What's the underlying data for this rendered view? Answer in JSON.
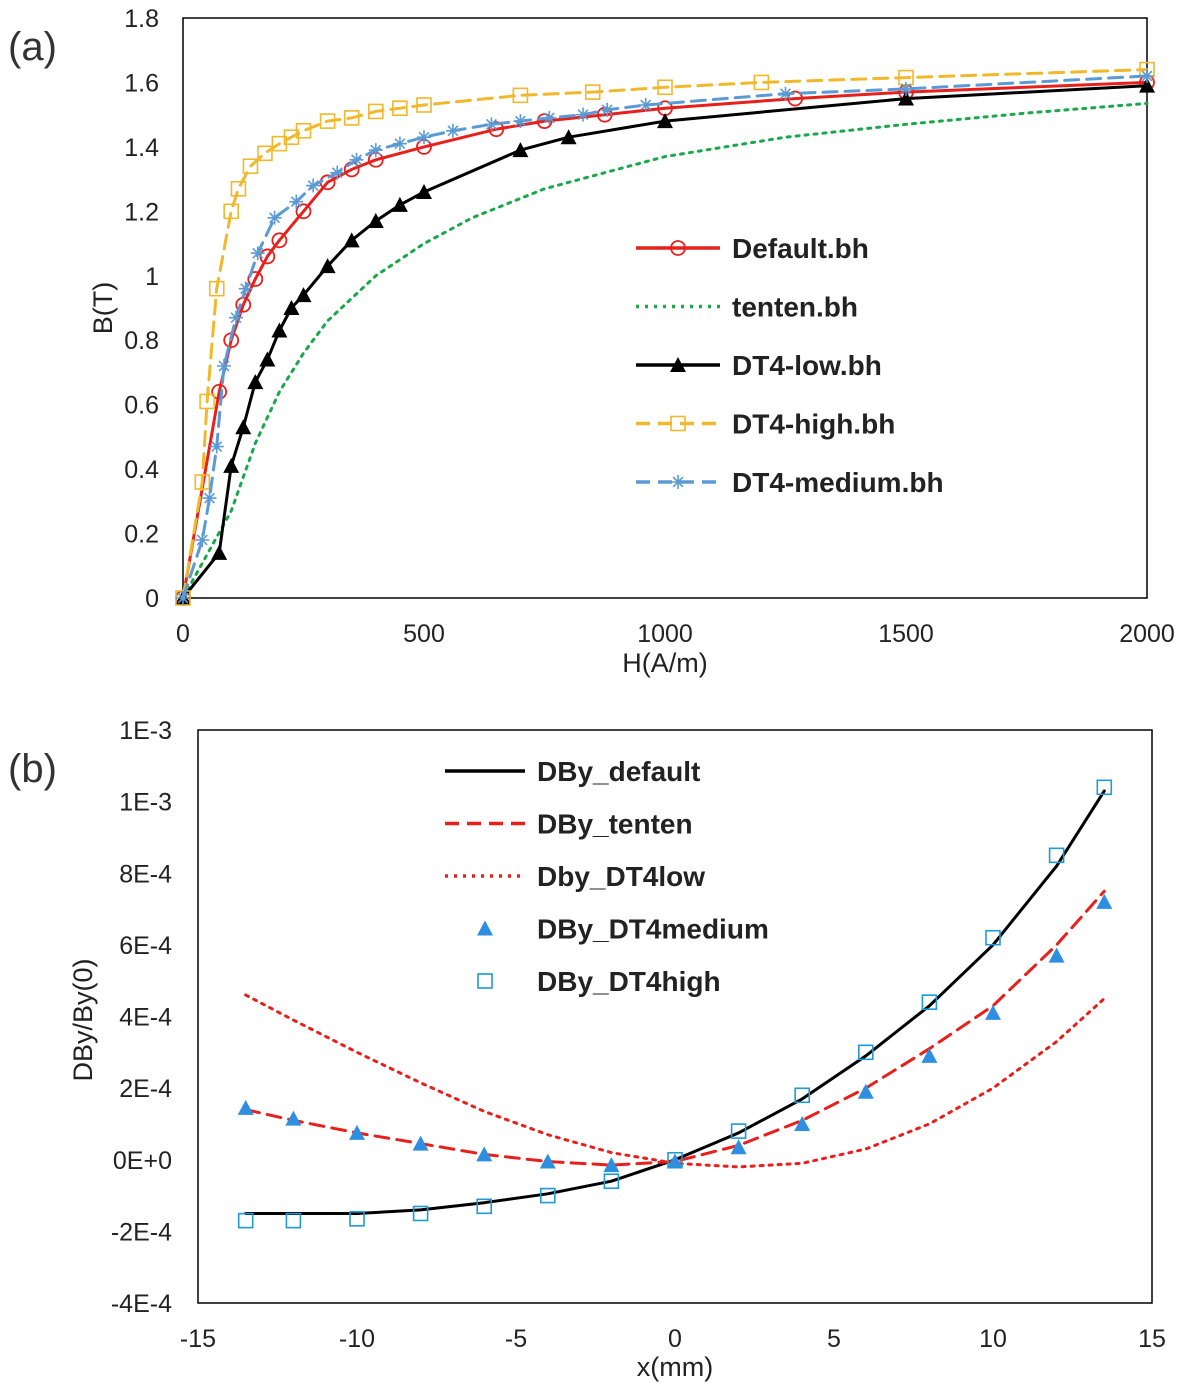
{
  "chart_data": [
    {
      "panel": "(a)",
      "type": "line",
      "xlabel": "H(A/m)",
      "ylabel": "B(T)",
      "xlim": [
        0,
        2000
      ],
      "ylim": [
        0,
        1.8
      ],
      "xticks": [
        "0",
        "500",
        "1000",
        "1500",
        "2000"
      ],
      "yticks": [
        "0",
        "0.2",
        "0.4",
        "0.6",
        "0.8",
        "1",
        "1.2",
        "1.4",
        "1.6",
        "1.8"
      ],
      "legend_position": "center-right",
      "series": [
        {
          "name": "Default.bh",
          "color": "#e8201c",
          "style": "solid",
          "marker": "circle-open",
          "x": [
            0,
            75,
            100,
            125,
            150,
            175,
            200,
            250,
            300,
            350,
            400,
            500,
            650,
            750,
            875,
            1000,
            1270,
            1500,
            2000
          ],
          "y": [
            0,
            0.64,
            0.8,
            0.91,
            0.99,
            1.06,
            1.11,
            1.2,
            1.29,
            1.33,
            1.36,
            1.4,
            1.455,
            1.48,
            1.5,
            1.52,
            1.55,
            1.57,
            1.6
          ]
        },
        {
          "name": "tenten.bh",
          "color": "#1aa84a",
          "style": "dotted",
          "marker": "none",
          "x": [
            0,
            100,
            150,
            200,
            250,
            300,
            400,
            500,
            600,
            750,
            1000,
            1250,
            1500,
            1750,
            2000
          ],
          "y": [
            0,
            0.27,
            0.48,
            0.64,
            0.76,
            0.86,
            1.0,
            1.1,
            1.18,
            1.27,
            1.37,
            1.43,
            1.47,
            1.505,
            1.535
          ]
        },
        {
          "name": "DT4-low.bh",
          "color": "#000000",
          "style": "solid",
          "marker": "triangle-filled",
          "x": [
            0,
            75,
            100,
            125,
            150,
            175,
            200,
            225,
            250,
            300,
            350,
            400,
            450,
            500,
            700,
            800,
            1000,
            1500,
            2000
          ],
          "y": [
            0,
            0.14,
            0.41,
            0.53,
            0.67,
            0.74,
            0.83,
            0.9,
            0.94,
            1.03,
            1.11,
            1.17,
            1.22,
            1.26,
            1.39,
            1.43,
            1.48,
            1.55,
            1.59
          ]
        },
        {
          "name": "DT4-high.bh",
          "color": "#f0b82a",
          "style": "dashed",
          "marker": "square-open",
          "x": [
            0,
            40,
            50,
            70,
            100,
            115,
            140,
            170,
            200,
            225,
            250,
            300,
            350,
            400,
            450,
            500,
            700,
            850,
            1000,
            1200,
            1500,
            2000
          ],
          "y": [
            0,
            0.36,
            0.61,
            0.96,
            1.2,
            1.27,
            1.34,
            1.38,
            1.41,
            1.43,
            1.45,
            1.48,
            1.49,
            1.51,
            1.52,
            1.53,
            1.56,
            1.57,
            1.585,
            1.6,
            1.615,
            1.64
          ]
        },
        {
          "name": "DT4-medium.bh",
          "color": "#5b9bd5",
          "style": "dashed",
          "marker": "asterisk",
          "x": [
            0,
            40,
            55,
            70,
            85,
            110,
            130,
            155,
            190,
            235,
            270,
            320,
            360,
            400,
            450,
            500,
            560,
            640,
            700,
            760,
            830,
            880,
            960,
            1250,
            1500,
            2000
          ],
          "y": [
            0,
            0.18,
            0.31,
            0.47,
            0.72,
            0.87,
            0.96,
            1.07,
            1.18,
            1.23,
            1.28,
            1.32,
            1.36,
            1.39,
            1.41,
            1.43,
            1.45,
            1.47,
            1.48,
            1.49,
            1.5,
            1.515,
            1.53,
            1.565,
            1.58,
            1.62
          ]
        }
      ]
    },
    {
      "panel": "(b)",
      "type": "line",
      "xlabel": "x(mm)",
      "ylabel": "DBy/By(0)",
      "xlim": [
        -15,
        15
      ],
      "ylim": [
        -0.0004,
        0.0012
      ],
      "xticks": [
        "-15",
        "-10",
        "-5",
        "0",
        "5",
        "10",
        "15"
      ],
      "yticks": [
        "-4E-4",
        "-2E-4",
        "0E+0",
        "2E-4",
        "4E-4",
        "6E-4",
        "8E-4",
        "1E-3",
        "1E-3"
      ],
      "legend_position": "top-left",
      "series": [
        {
          "name": "DBy_default",
          "color": "#000000",
          "style": "solid",
          "marker": "none",
          "x": [
            -13.5,
            -12,
            -10,
            -8,
            -6,
            -4,
            -2,
            0,
            2,
            4,
            6,
            8,
            10,
            12,
            13.5
          ],
          "y": [
            -0.00015,
            -0.00015,
            -0.00015,
            -0.00014,
            -0.00012,
            -9.5e-05,
            -6e-05,
            0,
            7.5e-05,
            0.00017,
            0.00029,
            0.00043,
            0.0006,
            0.00082,
            0.00103
          ]
        },
        {
          "name": "DBy_tenten",
          "color": "#e8201c",
          "style": "dashed",
          "marker": "none",
          "x": [
            -13.5,
            -12,
            -10,
            -8,
            -6,
            -4,
            -2,
            0,
            2,
            4,
            6,
            8,
            10,
            12,
            13.5
          ],
          "y": [
            0.00014,
            0.00011,
            7.5e-05,
            4.5e-05,
            1.5e-05,
            -5e-06,
            -1.5e-05,
            -5e-06,
            4e-05,
            0.00011,
            0.0002,
            0.00031,
            0.00043,
            0.0006,
            0.00075
          ]
        },
        {
          "name": "Dby_DT4low",
          "color": "#e8201c",
          "style": "dotted",
          "marker": "none",
          "x": [
            -13.5,
            -12,
            -10,
            -8,
            -6,
            -4,
            -2,
            0,
            2,
            4,
            6,
            8,
            10,
            12,
            13.5
          ],
          "y": [
            0.00046,
            0.00039,
            0.0003,
            0.000215,
            0.000135,
            7e-05,
            2e-05,
            -1e-05,
            -2e-05,
            -1e-05,
            3e-05,
            0.0001,
            0.0002,
            0.00033,
            0.00045
          ]
        },
        {
          "name": "DBy_DT4medium",
          "color": "#2e8fe0",
          "style": "none",
          "marker": "triangle-filled",
          "x": [
            -13.5,
            -12,
            -10,
            -8,
            -6,
            -4,
            -2,
            0,
            2,
            4,
            6,
            8,
            10,
            12,
            13.5
          ],
          "y": [
            0.000145,
            0.000115,
            7.5e-05,
            4.5e-05,
            1.5e-05,
            -5e-06,
            -1.5e-05,
            -5e-06,
            3.5e-05,
            0.0001,
            0.00019,
            0.00029,
            0.00041,
            0.00057,
            0.00072
          ]
        },
        {
          "name": "DBy_DT4high",
          "color": "#1f9ad6",
          "style": "none",
          "marker": "square-open",
          "x": [
            -13.5,
            -12,
            -10,
            -8,
            -6,
            -4,
            -2,
            0,
            2,
            4,
            6,
            8,
            10,
            12,
            13.5
          ],
          "y": [
            -0.00017,
            -0.00017,
            -0.000165,
            -0.00015,
            -0.00013,
            -0.0001,
            -6e-05,
            0,
            8e-05,
            0.00018,
            0.0003,
            0.00044,
            0.00062,
            0.00085,
            0.00104
          ]
        }
      ]
    }
  ]
}
